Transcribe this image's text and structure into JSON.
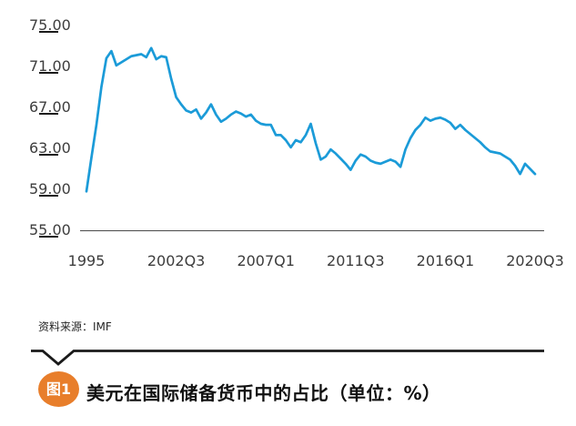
{
  "chart": {
    "y_axis": {
      "labels": [
        "75.00",
        "71.00",
        "67.00",
        "63.00",
        "59.00",
        "55.00"
      ],
      "values": [
        75,
        71,
        67,
        63,
        59,
        55
      ]
    },
    "x_axis": {
      "labels": [
        "1995",
        "2002Q3",
        "2007Q1",
        "2011Q3",
        "2016Q1",
        "2020Q3"
      ],
      "tick_indices": [
        0,
        18,
        36,
        54,
        72,
        90
      ]
    }
  },
  "chart_data": {
    "type": "line",
    "title": "美元在国际储备货币中的占比（单位：%）",
    "ylabel": "",
    "xlabel": "",
    "ylim": [
      55,
      75
    ],
    "grid": false,
    "legend": "none",
    "line_color": "#1b9bd8",
    "x_tick_labels": [
      "1995",
      "2002Q3",
      "2007Q1",
      "2011Q3",
      "2016Q1",
      "2020Q3"
    ],
    "x_tick_indices": [
      0,
      18,
      36,
      54,
      72,
      90
    ],
    "series": [
      {
        "name": "美元在国际储备货币中的占比(%)",
        "values": [
          58.8,
          62.1,
          65.3,
          69.0,
          71.8,
          72.5,
          71.1,
          71.4,
          71.7,
          72.0,
          72.1,
          72.2,
          71.9,
          72.8,
          71.7,
          72.0,
          71.9,
          69.8,
          68.0,
          67.3,
          66.7,
          66.5,
          66.8,
          65.9,
          66.5,
          67.3,
          66.3,
          65.6,
          65.9,
          66.3,
          66.6,
          66.4,
          66.1,
          66.3,
          65.7,
          65.4,
          65.3,
          65.3,
          64.3,
          64.3,
          63.8,
          63.1,
          63.8,
          63.6,
          64.3,
          65.4,
          63.5,
          61.9,
          62.2,
          62.9,
          62.5,
          62.0,
          61.5,
          60.9,
          61.8,
          62.4,
          62.2,
          61.8,
          61.6,
          61.5,
          61.7,
          61.9,
          61.7,
          61.2,
          62.9,
          64.0,
          64.8,
          65.3,
          66.0,
          65.7,
          65.9,
          66.0,
          65.8,
          65.5,
          64.9,
          65.3,
          64.8,
          64.4,
          64.0,
          63.6,
          63.1,
          62.7,
          62.6,
          62.5,
          62.2,
          61.9,
          61.3,
          60.5,
          61.5,
          61.0,
          60.5
        ]
      }
    ]
  },
  "source": {
    "label": "资料来源：IMF"
  },
  "caption": {
    "badge": "图1",
    "badge_color": "#e87e2b",
    "title": "美元在国际储备货币中的占比（单位：%）"
  }
}
